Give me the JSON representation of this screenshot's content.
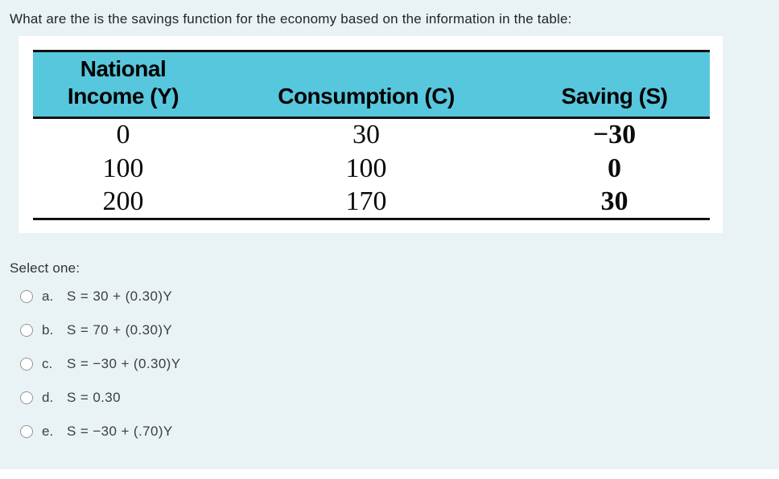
{
  "page": {
    "background_color": "#e9f2f4",
    "card_color": "#ffffff",
    "question_text": "What are the is the savings function for the economy based on the information in the table:"
  },
  "table": {
    "header_color": "#57c7dd",
    "col1_header_line1": "National",
    "col1_header_line2": "Income (Y)",
    "col2_header": "Consumption (C)",
    "col3_header": "Saving (S)",
    "rows": [
      {
        "income": "0",
        "consumption": "30",
        "saving": "−30"
      },
      {
        "income": "100",
        "consumption": "100",
        "saving": "0"
      },
      {
        "income": "200",
        "consumption": "170",
        "saving": "30"
      }
    ]
  },
  "question": {
    "select_prompt": "Select one:",
    "options": [
      {
        "letter": "a.",
        "formula": "S = 30 + (0.30)Y"
      },
      {
        "letter": "b.",
        "formula": "S = 70 + (0.30)Y"
      },
      {
        "letter": "c.",
        "formula": "S = −30 + (0.30)Y"
      },
      {
        "letter": "d.",
        "formula": "S = 0.30"
      },
      {
        "letter": "e.",
        "formula": "S = −30 + (.70)Y"
      }
    ]
  }
}
